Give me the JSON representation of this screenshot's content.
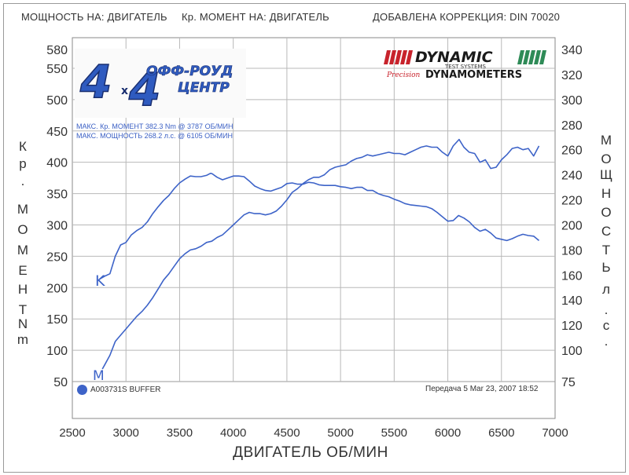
{
  "header": {
    "power_on": "МОЩНОСТЬ НА: ДВИГАТЕЛЬ",
    "torque_on": "Кр. МОМЕНТ НА: ДВИГАТЕЛЬ",
    "correction": "ДОБАВЛЕНА КОРРЕКЦИЯ: DIN 70020"
  },
  "logo": {
    "text_top": "ОФФ-РОУД",
    "text_bottom": "ЦЕНТР",
    "digit": "4",
    "times": "x"
  },
  "dynamic_logo": {
    "brand": "DYNAMIC",
    "sub": "TEST SYSTEMS",
    "precision": "Precision",
    "dyno": "DYNAMOMETERS"
  },
  "stats": {
    "line1": "МАКС. Кр. МОМЕНТ 382.3 Nm @ 3787 ОБ/МИН",
    "line2": "МАКС. МОЩНОСТЬ 268.2 л.с. @ 6105 ОБ/МИН"
  },
  "legend": {
    "label": "A003731S BUFFER",
    "color": "#3d63c8"
  },
  "transfer": "Передача 5 Mar 23, 2007 18:52",
  "annotations": {
    "k": "K",
    "m": "M"
  },
  "chart_data": {
    "type": "line",
    "xlabel": "ДВИГАТЕЛЬ ОБ/МИН",
    "ylabel_left": "Кр. МОМЕНТ Nm",
    "ylabel_right": "МОЩНОСТЬ л.с.",
    "ylabel_left_chars": [
      "К",
      "р",
      ".",
      "М",
      "О",
      "М",
      "Е",
      "Н",
      "Т",
      "N",
      "m"
    ],
    "ylabel_right_chars": [
      "М",
      "О",
      "Щ",
      "Н",
      "О",
      "С",
      "Т",
      "Ь",
      "л",
      ".",
      "с",
      "."
    ],
    "x_ticks": [
      2500,
      3000,
      3500,
      4000,
      4500,
      5000,
      5500,
      6000,
      6500,
      7000
    ],
    "y_left_ticks": [
      50,
      100,
      150,
      200,
      250,
      300,
      350,
      400,
      450,
      500,
      550,
      580
    ],
    "y_right_ticks": [
      75,
      100,
      120,
      140,
      160,
      180,
      200,
      220,
      240,
      260,
      280,
      300,
      320,
      340
    ],
    "xlim": [
      2500,
      7000
    ],
    "ylim_left": [
      50,
      580
    ],
    "ylim_right": [
      75,
      340
    ],
    "grid": true,
    "line_color": "#3d63c8",
    "series": [
      {
        "name": "Кр. МОМЕНТ",
        "axis": "left",
        "x": [
          2750,
          2800,
          2850,
          2900,
          2950,
          3000,
          3050,
          3100,
          3150,
          3200,
          3250,
          3300,
          3350,
          3400,
          3450,
          3500,
          3550,
          3600,
          3650,
          3700,
          3750,
          3787,
          3800,
          3850,
          3900,
          3950,
          4000,
          4050,
          4100,
          4150,
          4200,
          4250,
          4300,
          4350,
          4400,
          4450,
          4500,
          4550,
          4600,
          4650,
          4700,
          4750,
          4800,
          4850,
          4900,
          4950,
          5000,
          5050,
          5100,
          5150,
          5200,
          5250,
          5300,
          5350,
          5400,
          5450,
          5500,
          5550,
          5600,
          5650,
          5700,
          5750,
          5800,
          5850,
          5900,
          5950,
          6000,
          6050,
          6100,
          6150,
          6200,
          6250,
          6300,
          6350,
          6400,
          6450,
          6500,
          6550,
          6600,
          6650,
          6700,
          6750,
          6800,
          6850
        ],
        "values": [
          213,
          218,
          222,
          250,
          268,
          272,
          284,
          291,
          296,
          305,
          318,
          329,
          339,
          347,
          358,
          367,
          373,
          378,
          377,
          377,
          379,
          382.3,
          382,
          376,
          372,
          375,
          378,
          378,
          377,
          370,
          362,
          358,
          355,
          354,
          357,
          360,
          366,
          367,
          365,
          365,
          368,
          367,
          364,
          363,
          363,
          363,
          361,
          360,
          358,
          360,
          360,
          355,
          355,
          350,
          347,
          345,
          341,
          338,
          334,
          332,
          331,
          330,
          329,
          326,
          320,
          313,
          306,
          307,
          315,
          311,
          305,
          296,
          290,
          293,
          287,
          279,
          277,
          275,
          278,
          282,
          285,
          283,
          282,
          275
        ]
      },
      {
        "name": "МОЩНОСТЬ",
        "axis": "right",
        "x": [
          2780,
          2800,
          2850,
          2900,
          2950,
          3000,
          3050,
          3100,
          3150,
          3200,
          3250,
          3300,
          3350,
          3400,
          3450,
          3500,
          3550,
          3600,
          3650,
          3700,
          3750,
          3800,
          3850,
          3900,
          3950,
          4000,
          4050,
          4100,
          4150,
          4200,
          4250,
          4300,
          4350,
          4400,
          4450,
          4500,
          4550,
          4600,
          4650,
          4700,
          4750,
          4800,
          4850,
          4900,
          4950,
          5000,
          5050,
          5100,
          5150,
          5200,
          5250,
          5300,
          5350,
          5400,
          5450,
          5500,
          5550,
          5600,
          5650,
          5700,
          5750,
          5800,
          5850,
          5900,
          5950,
          6000,
          6050,
          6105,
          6150,
          6200,
          6250,
          6300,
          6350,
          6400,
          6450,
          6500,
          6550,
          6600,
          6650,
          6700,
          6750,
          6800,
          6850
        ],
        "values": [
          85,
          88,
          96,
          107,
          112,
          117,
          122,
          127,
          131,
          136,
          142,
          149,
          156,
          161,
          167,
          173,
          177,
          180,
          181,
          183,
          186,
          187,
          190,
          192,
          196,
          200,
          204,
          208,
          210,
          209,
          209,
          208,
          209,
          211,
          215,
          220,
          226,
          229,
          233,
          236,
          238,
          238,
          240,
          244,
          246,
          247,
          248,
          251,
          253,
          254,
          256,
          255,
          256,
          257,
          258,
          257,
          257,
          256,
          258,
          260,
          262,
          263,
          262,
          262,
          258,
          255,
          263,
          268.2,
          262,
          258,
          257,
          250,
          252,
          245,
          246,
          252,
          256,
          261,
          262,
          260,
          261,
          255,
          263
        ]
      }
    ]
  }
}
